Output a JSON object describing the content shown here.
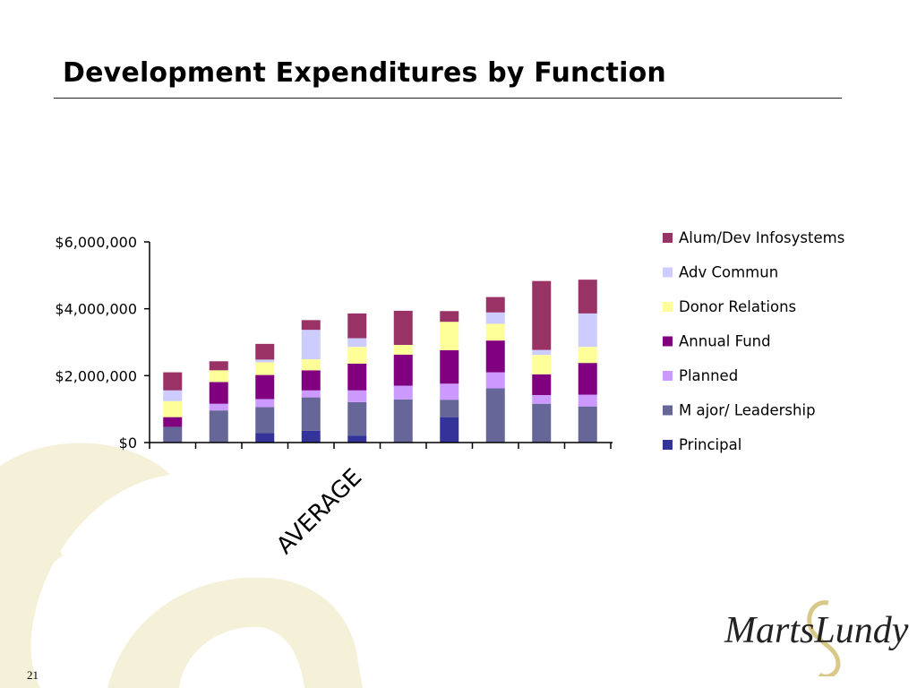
{
  "slide": {
    "title": "Development Expenditures by Function",
    "page_number": "21",
    "logo_text": "MartsLundy"
  },
  "colors": {
    "background_swirl": "#f5f0d8"
  },
  "chart_data": {
    "type": "bar",
    "stacked": true,
    "title": "",
    "xlabel": "",
    "ylabel": "",
    "ylim": [
      0,
      6000000
    ],
    "yticks": [
      0,
      2000000,
      4000000,
      6000000
    ],
    "ytick_labels": [
      "$0",
      "$2,000,000",
      "$4,000,000",
      "$6,000,000"
    ],
    "categories": [
      "",
      "",
      "",
      "",
      "",
      "AVERAGE",
      "",
      "",
      "",
      ""
    ],
    "legend_position": "right",
    "series": [
      {
        "name": "Principal",
        "color": "#33339a",
        "values": [
          0,
          0,
          280000,
          350000,
          210000,
          0,
          760000,
          0,
          0,
          0
        ]
      },
      {
        "name": "M ajor/ Leadership",
        "color": "#666699",
        "values": [
          470000,
          960000,
          780000,
          1000000,
          1000000,
          1290000,
          520000,
          1620000,
          1160000,
          1080000
        ]
      },
      {
        "name": "Planned",
        "color": "#cc99ff",
        "values": [
          0,
          200000,
          240000,
          210000,
          350000,
          410000,
          480000,
          480000,
          260000,
          350000
        ]
      },
      {
        "name": "Annual Fund",
        "color": "#800080",
        "values": [
          290000,
          650000,
          720000,
          600000,
          800000,
          930000,
          1000000,
          950000,
          620000,
          950000
        ]
      },
      {
        "name": "Donor Relations",
        "color": "#ffff99",
        "values": [
          480000,
          350000,
          380000,
          330000,
          500000,
          290000,
          850000,
          500000,
          580000,
          480000
        ]
      },
      {
        "name": "Adv Commun",
        "color": "#ccccff",
        "values": [
          320000,
          0,
          80000,
          880000,
          260000,
          0,
          0,
          340000,
          150000,
          1000000
        ]
      },
      {
        "name": "Alum/Dev Infosystems",
        "color": "#993366",
        "values": [
          540000,
          270000,
          470000,
          290000,
          740000,
          1020000,
          320000,
          460000,
          2060000,
          1010000
        ]
      }
    ]
  }
}
